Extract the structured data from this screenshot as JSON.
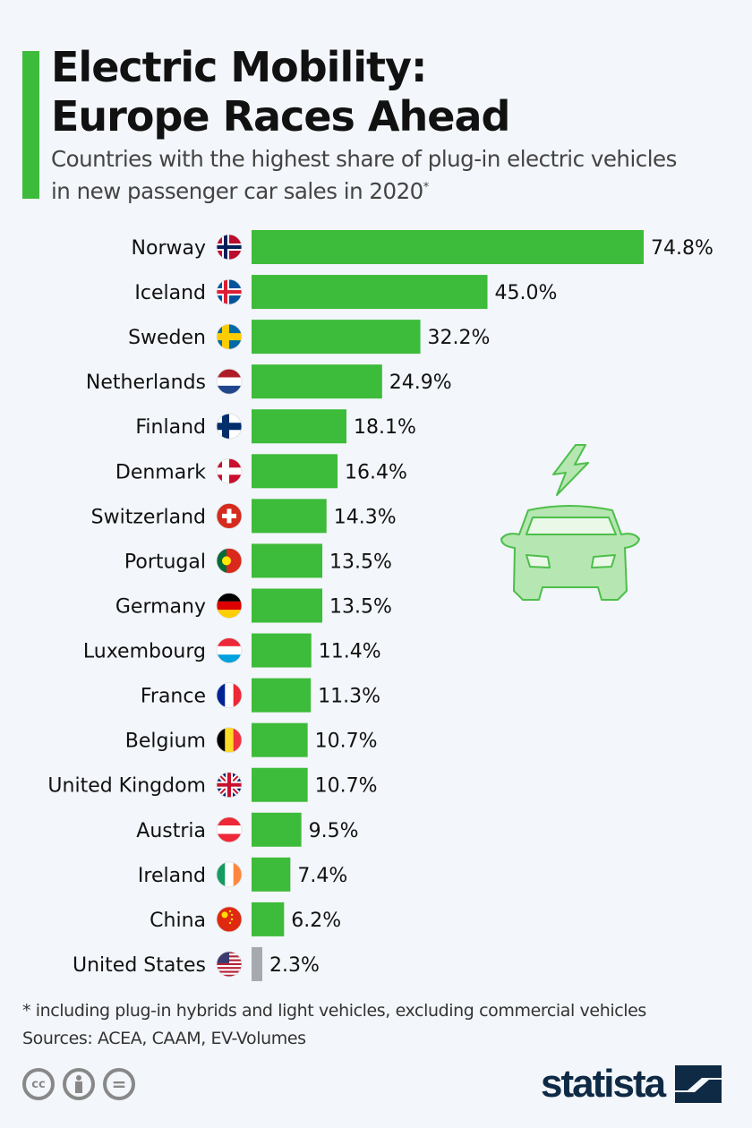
{
  "header": {
    "title_line1": "Electric Mobility:",
    "title_line2": "Europe Races Ahead",
    "subtitle_line1": "Countries with the highest share of plug-in electric vehicles",
    "subtitle_line2": "in new passenger car sales in 2020",
    "subtitle_mark": "*"
  },
  "chart_data": {
    "type": "bar",
    "orientation": "horizontal",
    "title": "Electric Mobility: Europe Races Ahead",
    "subtitle": "Countries with the highest share of plug-in electric vehicles in new passenger car sales in 2020*",
    "unit": "%",
    "categories": [
      "Norway",
      "Iceland",
      "Sweden",
      "Netherlands",
      "Finland",
      "Denmark",
      "Switzerland",
      "Portugal",
      "Germany",
      "Luxembourg",
      "France",
      "Belgium",
      "United Kingdom",
      "Austria",
      "Ireland",
      "China",
      "United States"
    ],
    "values": [
      74.8,
      45.0,
      32.2,
      24.9,
      18.1,
      16.4,
      14.3,
      13.5,
      13.5,
      11.4,
      11.3,
      10.7,
      10.7,
      9.5,
      7.4,
      6.2,
      2.3
    ],
    "value_labels": [
      "74.8%",
      "45.0%",
      "32.2%",
      "24.9%",
      "18.1%",
      "16.4%",
      "14.3%",
      "13.5%",
      "13.5%",
      "11.4%",
      "11.3%",
      "10.7%",
      "10.7%",
      "9.5%",
      "7.4%",
      "6.2%",
      "2.3%"
    ],
    "colors": {
      "europe": "#3dbb3a",
      "other": "#3dbb3a",
      "highlight_gray": "#a6a9ad"
    },
    "gray_categories": [
      "United States"
    ],
    "grid": false,
    "legend": "none"
  },
  "footer": {
    "note": "* including plug-in hybrids and light vehicles, excluding commercial vehicles",
    "sources": "Sources: ACEA, CAAM, EV-Volumes",
    "license_icons": [
      "cc-icon",
      "by-icon",
      "nd-icon"
    ],
    "license_cc": "cc",
    "license_nd": "="
  },
  "brand": {
    "logo_text": "statista"
  },
  "decor": {
    "icon": "electric-car-icon"
  }
}
